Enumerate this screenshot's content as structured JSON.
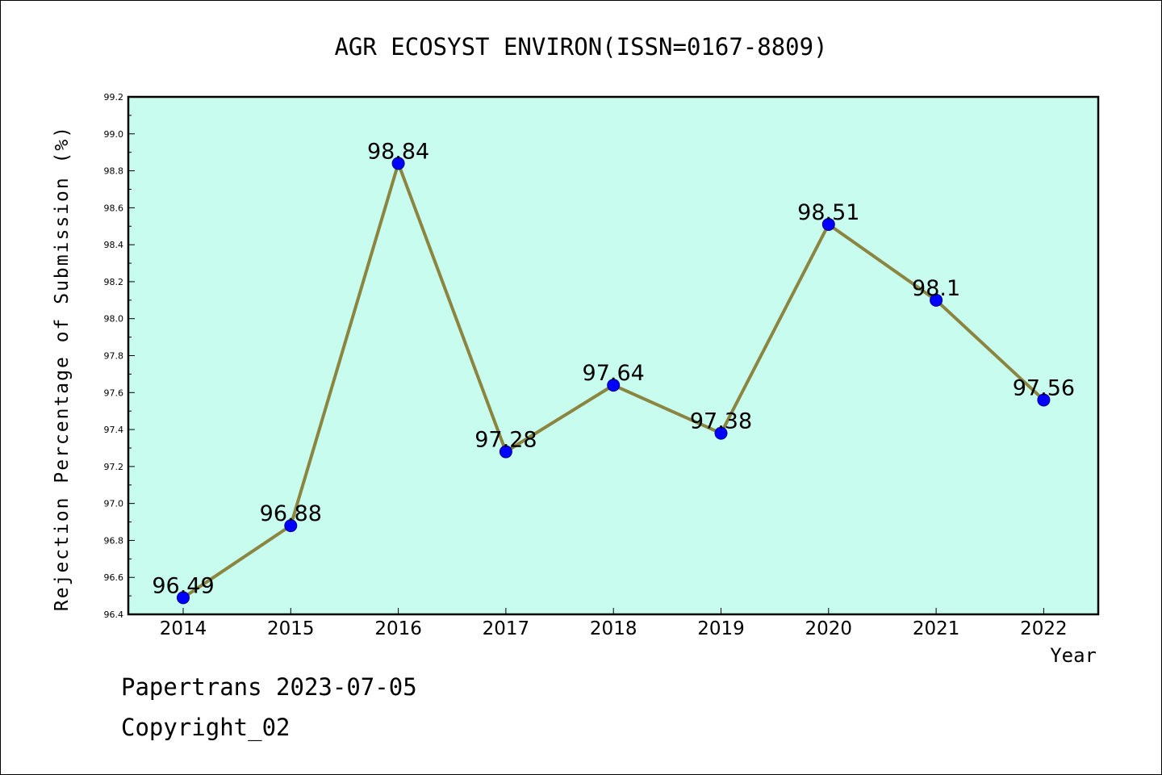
{
  "chart_data": {
    "type": "line",
    "title": "AGR ECOSYST ENVIRON(ISSN=0167-8809)",
    "xlabel": "Year",
    "ylabel": "Rejection Percentage of Submission (%)",
    "categories": [
      "2014",
      "2015",
      "2016",
      "2017",
      "2018",
      "2019",
      "2020",
      "2021",
      "2022"
    ],
    "series": [
      {
        "values": [
          96.49,
          96.88,
          98.84,
          97.28,
          97.64,
          97.38,
          98.51,
          98.1,
          97.56
        ],
        "labels": [
          "96.49",
          "96.88",
          "98.84",
          "97.28",
          "97.64",
          "97.38",
          "98.51",
          "98.1",
          "97.56"
        ]
      }
    ],
    "ylim": [
      96.4,
      99.2
    ],
    "yticks": [
      96.4,
      96.6,
      96.8,
      97.0,
      97.2,
      97.4,
      97.6,
      97.8,
      98.0,
      98.2,
      98.4,
      98.6,
      98.8,
      99.0,
      99.2
    ],
    "ytick_labels": [
      "96.4",
      "96.6",
      "96.8",
      "97.0",
      "97.2",
      "97.4",
      "97.6",
      "97.8",
      "98.0",
      "98.2",
      "98.4",
      "98.6",
      "98.8",
      "99.0",
      "99.2"
    ],
    "grid": false,
    "legend": "none",
    "colors": {
      "plot_background": "#c8fcee",
      "line": "#8b8540",
      "marker": "#0000ff",
      "marker_edge": "#00008b",
      "axes": "#000000"
    }
  },
  "footer": {
    "date": "Papertrans 2023-07-05",
    "copyright": "Copyright_02"
  }
}
